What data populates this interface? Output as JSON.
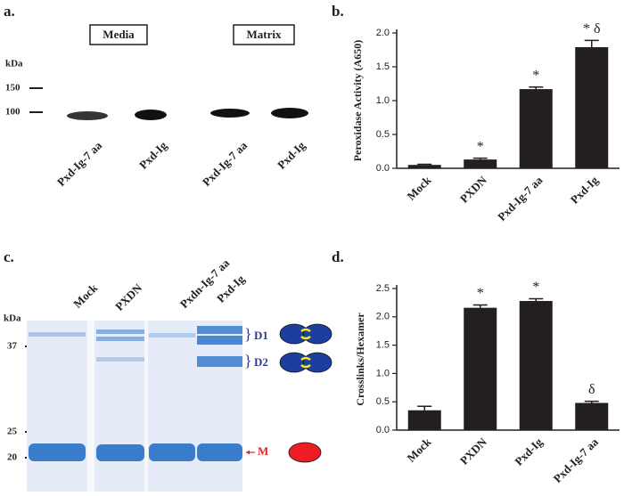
{
  "panel_a": {
    "label": "a.",
    "groups": [
      "Media",
      "Matrix"
    ],
    "unit": "kDa",
    "markers": [
      150,
      100
    ],
    "lanes": [
      "Pxd-Ig-7 aa",
      "Pxd-Ig",
      "Pxd-Ig-7 aa",
      "Pxd-Ig"
    ]
  },
  "panel_c": {
    "label": "c.",
    "unit": "kDa",
    "markers": [
      37,
      25,
      20
    ],
    "lanes": [
      "Mock",
      "PXDN",
      "Pxdn-Ig-7 aa",
      "Pxd-Ig"
    ],
    "bands": [
      "D1",
      "D2",
      "M"
    ]
  },
  "chart_data": [
    {
      "type": "bar",
      "panel": "b.",
      "y_label": "Peroxidase Activity (A650)",
      "categories": [
        "Mock",
        "PXDN",
        "Pxd-Ig-7 aa",
        "Pxd-Ig"
      ],
      "values": [
        0.05,
        0.13,
        1.17,
        1.79
      ],
      "errors": [
        0.01,
        0.02,
        0.03,
        0.1
      ],
      "markers": [
        null,
        "*",
        "*",
        "*  δ"
      ],
      "color": "#231f20",
      "ylim": [
        0,
        2.0
      ],
      "yticks": [
        {
          "value": 0,
          "label": "0.0"
        },
        {
          "value": 0.5,
          "label": "0.5"
        },
        {
          "value": 1,
          "label": "1.0"
        },
        {
          "value": 1.5,
          "label": "1.5"
        },
        {
          "value": 2,
          "label": "2.0"
        }
      ]
    },
    {
      "type": "bar",
      "panel": "d.",
      "y_label": "Crosslinks/Hexamer",
      "categories": [
        "Mock",
        "PXDN",
        "Pxd-Ig",
        "Pxd-Ig-7 aa"
      ],
      "values": [
        0.35,
        2.16,
        2.28,
        0.48
      ],
      "errors": [
        0.07,
        0.05,
        0.04,
        0.03
      ],
      "markers": [
        null,
        "*",
        "*",
        "δ"
      ],
      "color": "#231f20",
      "ylim": [
        0,
        2.5
      ],
      "yticks": [
        {
          "value": 0,
          "label": "0.0"
        },
        {
          "value": 0.5,
          "label": "0.5"
        },
        {
          "value": 1,
          "label": "1.0"
        },
        {
          "value": 1.5,
          "label": "1.5"
        },
        {
          "value": 2,
          "label": "2.0"
        },
        {
          "value": 2.5,
          "label": "2.5"
        }
      ]
    }
  ]
}
